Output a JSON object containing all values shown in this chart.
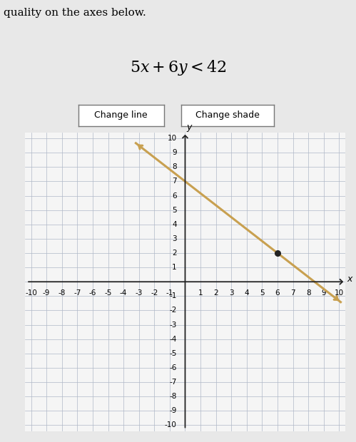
{
  "title_latex": "$5x + 6y < 42$",
  "title_fontsize": 16,
  "xlabel": "x",
  "ylabel": "y",
  "xlim": [
    -10,
    10
  ],
  "ylim": [
    -10,
    10
  ],
  "line_color": "#c8a050",
  "line_width": 2.2,
  "dot_color": "#222222",
  "dot_x": 6,
  "dot_y": 2,
  "grid_color": "#b0b8c8",
  "plot_bg_color": "#f5f5f5",
  "fig_bg_color": "#e8e8e8",
  "axis_color": "#222222",
  "button1_text": "Change line",
  "button2_text": "Change shade",
  "header_text": "quality on the axes below.",
  "coeff_a": 5,
  "coeff_b": 6,
  "coeff_c": 42
}
